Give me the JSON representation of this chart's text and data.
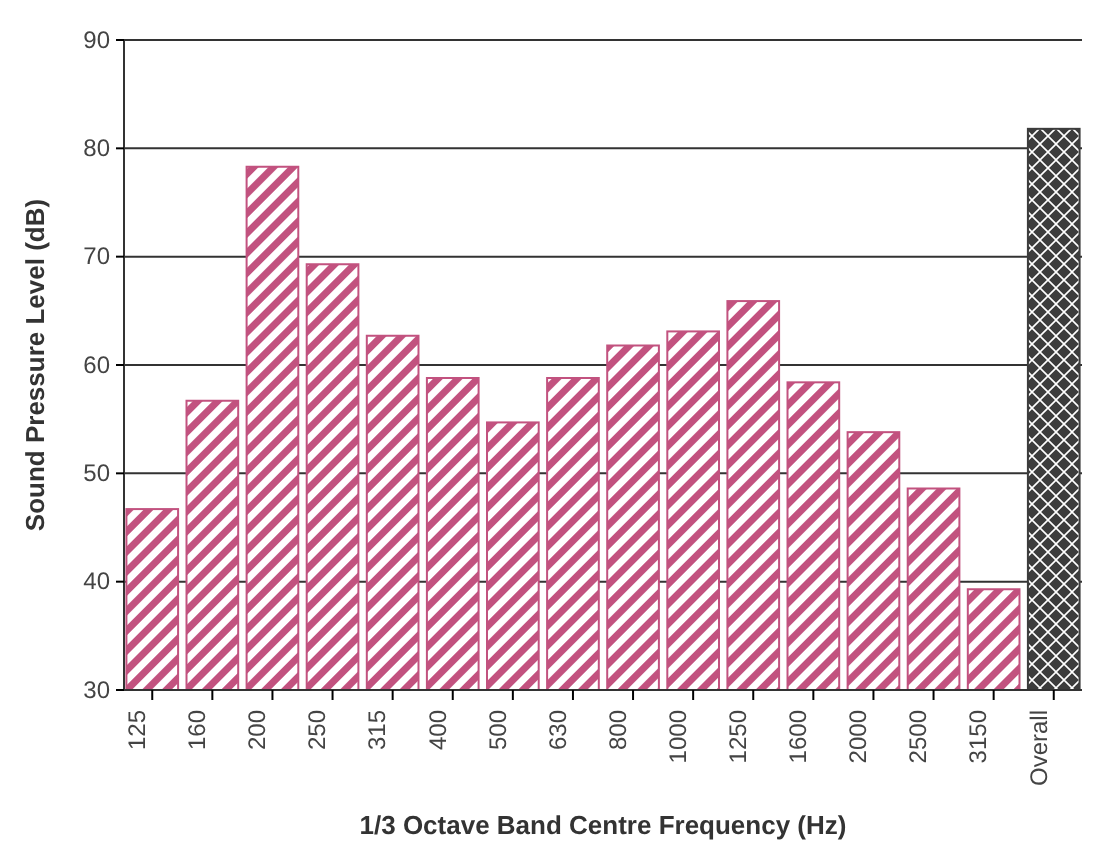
{
  "chart_data": {
    "type": "bar",
    "xlabel": "1/3 Octave Band Centre Frequency (Hz)",
    "ylabel": "Sound Pressure Level (dB)",
    "categories": [
      "125",
      "160",
      "200",
      "250",
      "315",
      "400",
      "500",
      "630",
      "800",
      "1000",
      "1250",
      "1600",
      "2000",
      "2500",
      "3150",
      "Overall"
    ],
    "values": [
      46.7,
      56.7,
      78.3,
      69.3,
      62.7,
      58.8,
      54.7,
      58.8,
      61.8,
      63.1,
      65.9,
      58.4,
      53.8,
      48.6,
      39.3,
      81.8
    ],
    "colors": [
      "#c2527f",
      "#c2527f",
      "#c2527f",
      "#c2527f",
      "#c2527f",
      "#c2527f",
      "#c2527f",
      "#c2527f",
      "#c2527f",
      "#c2527f",
      "#c2527f",
      "#c2527f",
      "#c2527f",
      "#c2527f",
      "#c2527f",
      "#3c3c3c"
    ],
    "ylim": [
      30,
      90
    ],
    "yticks": [
      30,
      40,
      50,
      60,
      70,
      80,
      90
    ],
    "grid": "y"
  }
}
